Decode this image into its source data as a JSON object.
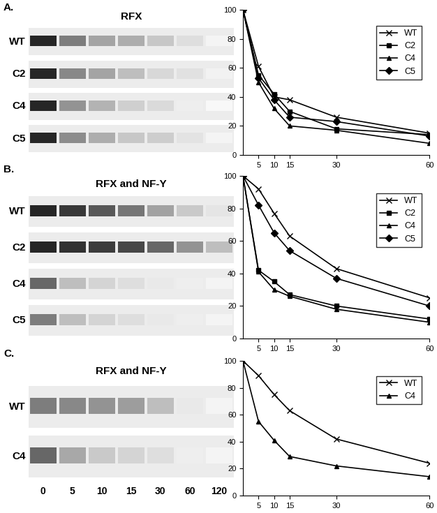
{
  "panel_labels": [
    "A.",
    "B.",
    "C."
  ],
  "lane_labels": [
    0,
    5,
    10,
    15,
    30,
    60,
    120
  ],
  "gels": [
    {
      "title": "RFX",
      "rows": [
        {
          "name": "WT",
          "band_intensity": [
            100,
            60,
            42,
            38,
            26,
            15,
            5
          ]
        },
        {
          "name": "C2",
          "band_intensity": [
            100,
            55,
            42,
            30,
            18,
            14,
            6
          ]
        },
        {
          "name": "C4",
          "band_intensity": [
            100,
            50,
            35,
            22,
            17,
            8,
            3
          ]
        },
        {
          "name": "C5",
          "band_intensity": [
            100,
            53,
            38,
            26,
            23,
            13,
            5
          ]
        }
      ]
    },
    {
      "title": "RFX and NF-Y",
      "rows": [
        {
          "name": "WT",
          "band_intensity": [
            100,
            92,
            77,
            63,
            43,
            25,
            12
          ]
        },
        {
          "name": "C2",
          "band_intensity": [
            100,
            95,
            90,
            85,
            70,
            50,
            30
          ]
        },
        {
          "name": "C4",
          "band_intensity": [
            70,
            30,
            20,
            15,
            10,
            8,
            5
          ]
        },
        {
          "name": "C5",
          "band_intensity": [
            60,
            30,
            20,
            15,
            10,
            8,
            5
          ]
        }
      ]
    },
    {
      "title": "RFX and NF-Y",
      "rows": [
        {
          "name": "WT",
          "band_intensity": [
            60,
            55,
            50,
            45,
            30,
            10,
            5
          ]
        },
        {
          "name": "C4",
          "band_intensity": [
            70,
            40,
            25,
            20,
            15,
            8,
            5
          ]
        }
      ]
    }
  ],
  "chart_data": [
    {
      "type": "line",
      "x": [
        0,
        5,
        10,
        15,
        30,
        60
      ],
      "xlim": [
        0,
        60
      ],
      "xticks": [
        5,
        10,
        15,
        30,
        60
      ],
      "ylim": [
        0,
        100
      ],
      "yticks": [
        0,
        20,
        40,
        60,
        80,
        100
      ],
      "legend": "upper right",
      "series": [
        {
          "name": "WT",
          "color": "#000000",
          "marker": "x",
          "values": [
            100,
            61,
            40,
            38,
            26,
            15
          ]
        },
        {
          "name": "C2",
          "color": "#000000",
          "marker": "square",
          "values": [
            100,
            55,
            42,
            30,
            18,
            14
          ]
        },
        {
          "name": "C4",
          "color": "#000000",
          "marker": "triangle",
          "values": [
            100,
            50,
            32,
            20,
            17,
            8
          ]
        },
        {
          "name": "C5",
          "color": "#000000",
          "marker": "diamond",
          "values": [
            100,
            53,
            38,
            26,
            23,
            13
          ]
        }
      ]
    },
    {
      "type": "line",
      "x": [
        0,
        5,
        10,
        15,
        30,
        60
      ],
      "xlim": [
        0,
        60
      ],
      "xticks": [
        5,
        10,
        15,
        30,
        60
      ],
      "ylim": [
        0,
        100
      ],
      "yticks": [
        0,
        20,
        40,
        60,
        80,
        100
      ],
      "legend": "upper right",
      "series": [
        {
          "name": "WT",
          "color": "#000000",
          "marker": "x",
          "values": [
            100,
            92,
            77,
            63,
            43,
            25
          ]
        },
        {
          "name": "C2",
          "color": "#000000",
          "marker": "square",
          "values": [
            100,
            42,
            35,
            27,
            20,
            12
          ]
        },
        {
          "name": "C4",
          "color": "#000000",
          "marker": "triangle",
          "values": [
            100,
            41,
            30,
            26,
            18,
            10
          ]
        },
        {
          "name": "C5",
          "color": "#000000",
          "marker": "diamond",
          "values": [
            100,
            82,
            65,
            54,
            37,
            20
          ]
        }
      ]
    },
    {
      "type": "line",
      "x": [
        0,
        5,
        10,
        15,
        30,
        60
      ],
      "xlim": [
        0,
        60
      ],
      "xticks": [
        5,
        10,
        15,
        30,
        60
      ],
      "ylim": [
        0,
        100
      ],
      "yticks": [
        0,
        20,
        40,
        60,
        80,
        100
      ],
      "legend": "upper right",
      "series": [
        {
          "name": "WT",
          "color": "#000000",
          "marker": "x",
          "values": [
            100,
            89,
            75,
            63,
            42,
            24
          ]
        },
        {
          "name": "C4",
          "color": "#000000",
          "marker": "triangle",
          "values": [
            100,
            55,
            41,
            29,
            22,
            14
          ]
        }
      ]
    }
  ]
}
